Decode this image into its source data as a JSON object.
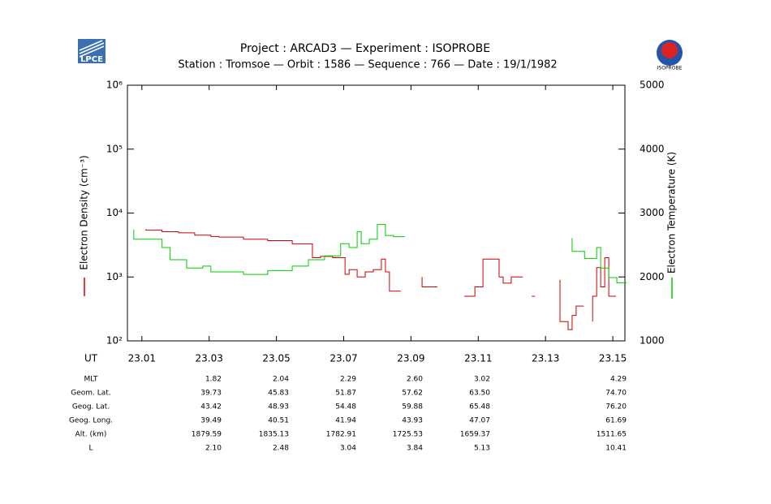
{
  "chart_data": {
    "type": "line",
    "title": "Project : ARCAD3  —  Experiment : ISOPROBE",
    "subtitle": "Station : Tromsoe  —  Orbit :  1586  —  Sequence :  766  —  Date : 19/1/1982",
    "logos": [
      "LPCE",
      "ISOPROBE"
    ],
    "x_label": "UT",
    "y_label": "Electron Density (cm⁻³)",
    "y2_label": "Electron Temperature (K)",
    "log_y": true,
    "xlim": [
      23.0057,
      23.1536
    ],
    "xticks": [
      23.01,
      23.03,
      23.05,
      23.07,
      23.09,
      23.11,
      23.13,
      23.15
    ],
    "ylim": [
      100,
      1000000
    ],
    "yticks": [
      {
        "value": 100,
        "label": "10²"
      },
      {
        "value": 1000,
        "label": "10³"
      },
      {
        "value": 10000,
        "label": "10⁴"
      },
      {
        "value": 100000,
        "label": "10⁵"
      },
      {
        "value": 1000000,
        "label": "10⁶"
      }
    ],
    "y2lim": [
      1000,
      5000
    ],
    "y2ticks": [
      1000,
      2000,
      3000,
      4000,
      5000
    ],
    "series": [
      {
        "color": "#cc0000",
        "x": [
          23.0112,
          23.016,
          23.0209,
          23.0257,
          23.0305,
          23.0329,
          23.0402,
          23.0474,
          23.0547,
          23.0607,
          23.0631,
          23.0667,
          23.0704,
          23.0716,
          23.074,
          23.0764,
          23.0788,
          23.0812,
          23.0824,
          23.0836,
          23.086,
          null,
          23.0933,
          23.0969,
          null,
          23.1058,
          23.109,
          23.1114,
          23.1162,
          23.1174,
          23.1198,
          23.1223,
          null,
          23.1259,
          null,
          23.1343,
          23.1367,
          23.1379,
          23.1391,
          23.1404,
          null,
          23.144,
          23.1452,
          23.1464,
          23.1476,
          23.1488,
          23.15
        ],
        "values": [
          5600,
          5400,
          5100,
          4900,
          4500,
          4300,
          4200,
          3900,
          3700,
          3300,
          2000,
          2100,
          2000,
          1100,
          1300,
          1000,
          1200,
          1300,
          1900,
          1200,
          600,
          null,
          1000,
          700,
          null,
          500,
          500,
          700,
          1900,
          1000,
          800,
          1000,
          null,
          500,
          null,
          900,
          200,
          150,
          250,
          350,
          null,
          200,
          500,
          1400,
          700,
          2000,
          500
        ]
      },
      {
        "color": "#00cc00",
        "axis": "y2",
        "x": [
          23.0076,
          23.016,
          23.0184,
          23.0233,
          23.0281,
          23.0305,
          23.0402,
          23.0474,
          23.0547,
          23.0595,
          23.0643,
          23.0691,
          23.0716,
          23.074,
          23.0752,
          23.0776,
          23.08,
          23.0824,
          23.0848,
          23.0872,
          null,
          23.1379,
          23.1416,
          23.1452,
          23.1464,
          23.1488,
          23.1512,
          23.1531
        ],
        "values": [
          2740,
          2590,
          2460,
          2270,
          2140,
          2170,
          2080,
          2040,
          2100,
          2170,
          2270,
          2330,
          2520,
          2460,
          2710,
          2520,
          2590,
          2820,
          2650,
          2630,
          null,
          2610,
          2400,
          2290,
          2460,
          2140,
          1990,
          1910
        ]
      }
    ],
    "table": {
      "rows": [
        {
          "label": "MLT",
          "values": [
            "1.82",
            "2.04",
            "2.29",
            "2.60",
            "3.02",
            "4.29"
          ]
        },
        {
          "label": "Geom. Lat.",
          "values": [
            "39.73",
            "45.83",
            "51.87",
            "57.62",
            "63.50",
            "74.70"
          ]
        },
        {
          "label": "Geog. Lat.",
          "values": [
            "43.42",
            "48.93",
            "54.48",
            "59.88",
            "65.48",
            "76.20"
          ]
        },
        {
          "label": "Geog. Long.",
          "values": [
            "39.49",
            "40.51",
            "41.94",
            "43.93",
            "47.07",
            "61.69"
          ]
        },
        {
          "label": "Alt. (km)",
          "values": [
            "1879.59",
            "1835.13",
            "1782.91",
            "1725.53",
            "1659.37",
            "1511.65"
          ]
        },
        {
          "label": "L",
          "values": [
            "2.10",
            "2.48",
            "3.04",
            "3.84",
            "5.13",
            "10.41"
          ]
        }
      ]
    }
  }
}
